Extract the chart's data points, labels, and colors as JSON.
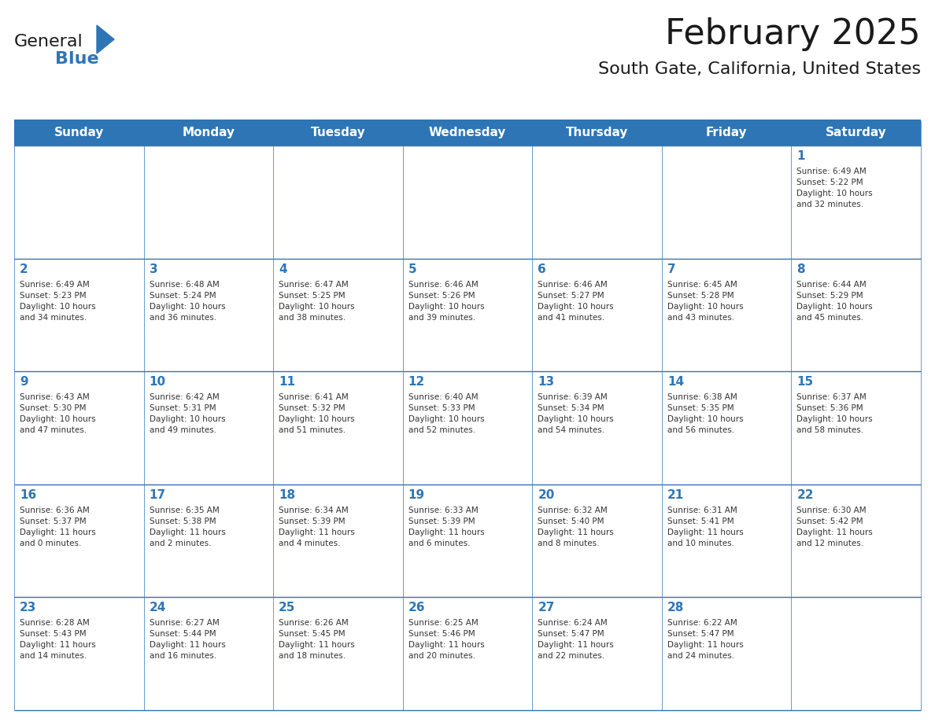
{
  "title": "February 2025",
  "subtitle": "South Gate, California, United States",
  "header_bg_color": "#2E75B6",
  "header_text_color": "#FFFFFF",
  "cell_bg_color": "#FFFFFF",
  "alt_cell_bg_color": "#F2F2F2",
  "border_color": "#2E75B6",
  "title_color": "#1A1A1A",
  "subtitle_color": "#1A1A1A",
  "day_number_color": "#2E75B6",
  "cell_text_color": "#333333",
  "days_of_week": [
    "Sunday",
    "Monday",
    "Tuesday",
    "Wednesday",
    "Thursday",
    "Friday",
    "Saturday"
  ],
  "weeks": [
    [
      {
        "day": "",
        "info": ""
      },
      {
        "day": "",
        "info": ""
      },
      {
        "day": "",
        "info": ""
      },
      {
        "day": "",
        "info": ""
      },
      {
        "day": "",
        "info": ""
      },
      {
        "day": "",
        "info": ""
      },
      {
        "day": "1",
        "info": "Sunrise: 6:49 AM\nSunset: 5:22 PM\nDaylight: 10 hours\nand 32 minutes."
      }
    ],
    [
      {
        "day": "2",
        "info": "Sunrise: 6:49 AM\nSunset: 5:23 PM\nDaylight: 10 hours\nand 34 minutes."
      },
      {
        "day": "3",
        "info": "Sunrise: 6:48 AM\nSunset: 5:24 PM\nDaylight: 10 hours\nand 36 minutes."
      },
      {
        "day": "4",
        "info": "Sunrise: 6:47 AM\nSunset: 5:25 PM\nDaylight: 10 hours\nand 38 minutes."
      },
      {
        "day": "5",
        "info": "Sunrise: 6:46 AM\nSunset: 5:26 PM\nDaylight: 10 hours\nand 39 minutes."
      },
      {
        "day": "6",
        "info": "Sunrise: 6:46 AM\nSunset: 5:27 PM\nDaylight: 10 hours\nand 41 minutes."
      },
      {
        "day": "7",
        "info": "Sunrise: 6:45 AM\nSunset: 5:28 PM\nDaylight: 10 hours\nand 43 minutes."
      },
      {
        "day": "8",
        "info": "Sunrise: 6:44 AM\nSunset: 5:29 PM\nDaylight: 10 hours\nand 45 minutes."
      }
    ],
    [
      {
        "day": "9",
        "info": "Sunrise: 6:43 AM\nSunset: 5:30 PM\nDaylight: 10 hours\nand 47 minutes."
      },
      {
        "day": "10",
        "info": "Sunrise: 6:42 AM\nSunset: 5:31 PM\nDaylight: 10 hours\nand 49 minutes."
      },
      {
        "day": "11",
        "info": "Sunrise: 6:41 AM\nSunset: 5:32 PM\nDaylight: 10 hours\nand 51 minutes."
      },
      {
        "day": "12",
        "info": "Sunrise: 6:40 AM\nSunset: 5:33 PM\nDaylight: 10 hours\nand 52 minutes."
      },
      {
        "day": "13",
        "info": "Sunrise: 6:39 AM\nSunset: 5:34 PM\nDaylight: 10 hours\nand 54 minutes."
      },
      {
        "day": "14",
        "info": "Sunrise: 6:38 AM\nSunset: 5:35 PM\nDaylight: 10 hours\nand 56 minutes."
      },
      {
        "day": "15",
        "info": "Sunrise: 6:37 AM\nSunset: 5:36 PM\nDaylight: 10 hours\nand 58 minutes."
      }
    ],
    [
      {
        "day": "16",
        "info": "Sunrise: 6:36 AM\nSunset: 5:37 PM\nDaylight: 11 hours\nand 0 minutes."
      },
      {
        "day": "17",
        "info": "Sunrise: 6:35 AM\nSunset: 5:38 PM\nDaylight: 11 hours\nand 2 minutes."
      },
      {
        "day": "18",
        "info": "Sunrise: 6:34 AM\nSunset: 5:39 PM\nDaylight: 11 hours\nand 4 minutes."
      },
      {
        "day": "19",
        "info": "Sunrise: 6:33 AM\nSunset: 5:39 PM\nDaylight: 11 hours\nand 6 minutes."
      },
      {
        "day": "20",
        "info": "Sunrise: 6:32 AM\nSunset: 5:40 PM\nDaylight: 11 hours\nand 8 minutes."
      },
      {
        "day": "21",
        "info": "Sunrise: 6:31 AM\nSunset: 5:41 PM\nDaylight: 11 hours\nand 10 minutes."
      },
      {
        "day": "22",
        "info": "Sunrise: 6:30 AM\nSunset: 5:42 PM\nDaylight: 11 hours\nand 12 minutes."
      }
    ],
    [
      {
        "day": "23",
        "info": "Sunrise: 6:28 AM\nSunset: 5:43 PM\nDaylight: 11 hours\nand 14 minutes."
      },
      {
        "day": "24",
        "info": "Sunrise: 6:27 AM\nSunset: 5:44 PM\nDaylight: 11 hours\nand 16 minutes."
      },
      {
        "day": "25",
        "info": "Sunrise: 6:26 AM\nSunset: 5:45 PM\nDaylight: 11 hours\nand 18 minutes."
      },
      {
        "day": "26",
        "info": "Sunrise: 6:25 AM\nSunset: 5:46 PM\nDaylight: 11 hours\nand 20 minutes."
      },
      {
        "day": "27",
        "info": "Sunrise: 6:24 AM\nSunset: 5:47 PM\nDaylight: 11 hours\nand 22 minutes."
      },
      {
        "day": "28",
        "info": "Sunrise: 6:22 AM\nSunset: 5:47 PM\nDaylight: 11 hours\nand 24 minutes."
      },
      {
        "day": "",
        "info": ""
      }
    ]
  ],
  "logo_text_general": "General",
  "logo_text_blue": "Blue",
  "logo_triangle_color": "#2E75B6"
}
